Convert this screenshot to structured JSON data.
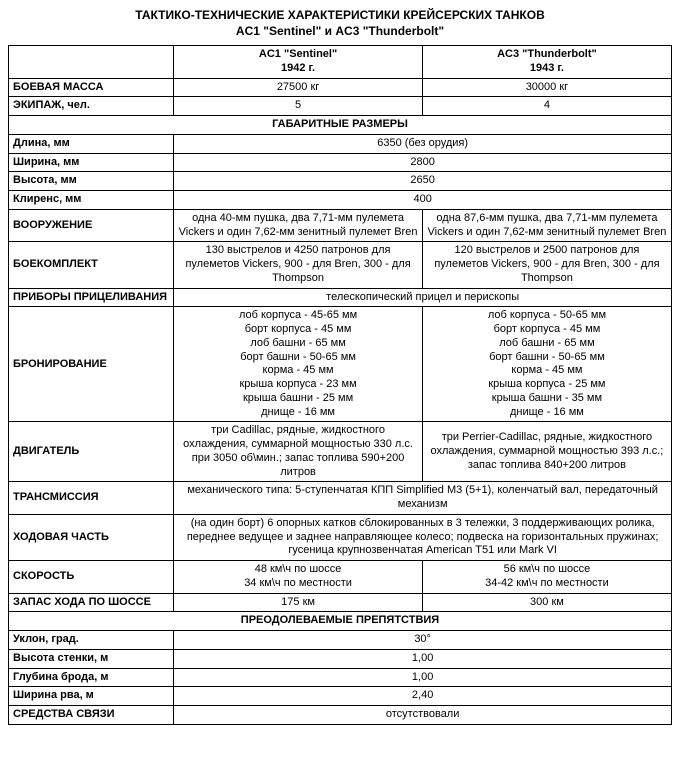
{
  "title_line1": "ТАКТИКО-ТЕХНИЧЕСКИЕ ХАРАКТЕРИСТИКИ КРЕЙСЕРСКИХ ТАНКОВ",
  "title_line2": "AC1 \"Sentinel\" и AC3 \"Thunderbolt\"",
  "header": {
    "col1_name": "AC1 \"Sentinel\"",
    "col1_year": "1942 г.",
    "col2_name": "AC3 \"Thunderbolt\"",
    "col2_year": "1943 г."
  },
  "rows": {
    "mass_label": "БОЕВАЯ МАССА",
    "mass_v1": "27500 кг",
    "mass_v2": "30000 кг",
    "crew_label": "ЭКИПАЖ, чел.",
    "crew_v1": "5",
    "crew_v2": "4",
    "dims_section": "ГАБАРИТНЫЕ РАЗМЕРЫ",
    "length_label": "Длина, мм",
    "length_v": "6350 (без орудия)",
    "width_label": "Ширина, мм",
    "width_v": "2800",
    "height_label": "Высота, мм",
    "height_v": "2650",
    "clearance_label": "Клиренс, мм",
    "clearance_v": "400",
    "arm_label": "ВООРУЖЕНИЕ",
    "arm_v1": "одна 40-мм пушка, два 7,71-мм пулемета Vickers и один 7,62-мм зенитный пулемет Bren",
    "arm_v2": "одна 87,6-мм пушка, два 7,71-мм пулемета Vickers и один 7,62-мм зенитный пулемет Bren",
    "ammo_label": "БОЕКОМПЛЕКТ",
    "ammo_v1": "130 выстрелов и 4250 патронов для пулеметов Vickers, 900 - для Bren, 300 - для Thompson",
    "ammo_v2": "120 выстрелов и 2500 патронов для пулеметов Vickers, 900 - для Bren, 300 - для Thompson",
    "sight_label": "ПРИБОРЫ ПРИЦЕЛИВАНИЯ",
    "sight_v": "телескопический прицел и перископы",
    "armor_label": "БРОНИРОВАНИЕ",
    "armor_v1": "лоб корпуса - 45-65 мм\nборт корпуса - 45 мм\nлоб башни - 65 мм\nборт башни - 50-65 мм\nкорма - 45 мм\nкрыша корпуса - 23 мм\nкрыша башни - 25 мм\nднище - 16 мм",
    "armor_v2": "лоб корпуса - 50-65 мм\nборт корпуса - 45 мм\nлоб башни - 65 мм\nборт башни - 50-65 мм\nкорма - 45 мм\nкрыша корпуса - 25 мм\nкрыша башни - 35 мм\nднище - 16 мм",
    "engine_label": "ДВИГАТЕЛЬ",
    "engine_v1": "три Cadillac, рядные, жидкостного охлаждения, суммарной мощностью 330 л.с. при 3050 об\\мин.; запас топлива 590+200 литров",
    "engine_v2": "три Perrier-Cadillac, рядные, жидкостного охлаждения, суммарной мощностью 393 л.с.; запас топлива 840+200 литров",
    "trans_label": "ТРАНСМИССИЯ",
    "trans_v": "механического типа: 5-ступенчатая КПП Simplified M3 (5+1), коленчатый вал, передаточный механизм",
    "chassis_label": "ХОДОВАЯ ЧАСТЬ",
    "chassis_v": "(на один борт) 6 опорных катков сблокированных в 3 тележки, 3 поддерживающих ролика, переднее ведущее и заднее направляющее колесо; подвеска на горизонтальных пружинах; гусеница крупнозвенчатая American T51 или Mark VI",
    "speed_label": "СКОРОСТЬ",
    "speed_v1": "48 км\\ч по шоссе\n34 км\\ч по местности",
    "speed_v2": "56 км\\ч по шоссе\n34-42 км\\ч по местности",
    "range_label": "ЗАПАС ХОДА ПО ШОССЕ",
    "range_v1": "175 км",
    "range_v2": "300 км",
    "obst_section": "ПРЕОДОЛЕВАЕМЫЕ ПРЕПЯТСТВИЯ",
    "grade_label": "Уклон, град.",
    "grade_v": "30°",
    "wall_label": "Высота стенки, м",
    "wall_v": "1,00",
    "ford_label": "Глубина брода, м",
    "ford_v": "1,00",
    "trench_label": "Ширина рва, м",
    "trench_v": "2,40",
    "comm_label": "СРЕДСТВА СВЯЗИ",
    "comm_v": "отсутствовали"
  }
}
